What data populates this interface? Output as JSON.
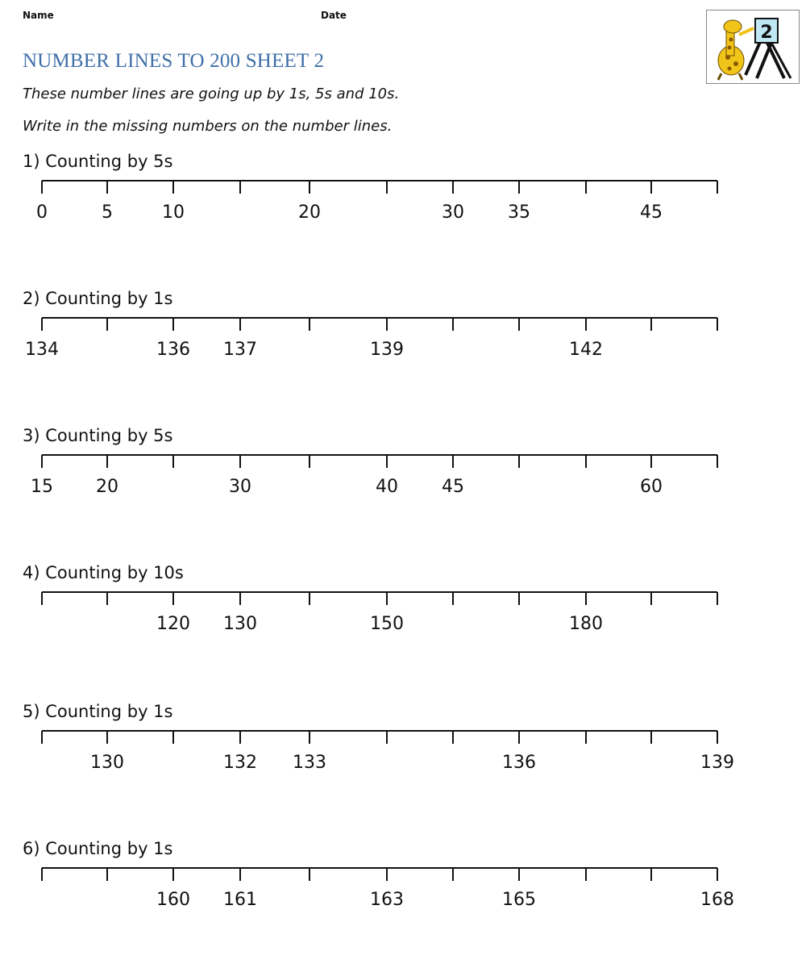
{
  "header": {
    "name_label": "Name",
    "date_label": "Date",
    "title": "NUMBER LINES TO 200 SHEET 2",
    "instructions": [
      "These number lines are going up by 1s, 5s and 10s.",
      "Write in the missing numbers on the number lines."
    ],
    "logo": {
      "icon": "giraffe-easel-logo-icon",
      "badge": "2"
    }
  },
  "problems": [
    {
      "title": "1) Counting by 5s",
      "ticks": [
        "0",
        "5",
        "10",
        "",
        "20",
        "",
        "30",
        "35",
        "",
        "45",
        ""
      ]
    },
    {
      "title": "2) Counting by 1s",
      "ticks": [
        "134",
        "",
        "136",
        "137",
        "",
        "139",
        "",
        "",
        "142",
        "",
        ""
      ]
    },
    {
      "title": "3) Counting by 5s",
      "ticks": [
        "15",
        "20",
        "",
        "30",
        "",
        "40",
        "45",
        "",
        "",
        "60",
        ""
      ]
    },
    {
      "title": "4) Counting by 10s",
      "ticks": [
        "",
        "",
        "120",
        "130",
        "",
        "150",
        "",
        "",
        "180",
        "",
        ""
      ]
    },
    {
      "title": "5) Counting by 1s",
      "ticks": [
        "",
        "130",
        "",
        "132",
        "133",
        "",
        "",
        "136",
        "",
        "",
        "139"
      ]
    },
    {
      "title": "6) Counting by 1s",
      "ticks": [
        "",
        "",
        "160",
        "161",
        "",
        "163",
        "",
        "165",
        "",
        "",
        "168"
      ]
    }
  ],
  "colors": {
    "title": "#3f6fa8",
    "line": "#111111"
  }
}
